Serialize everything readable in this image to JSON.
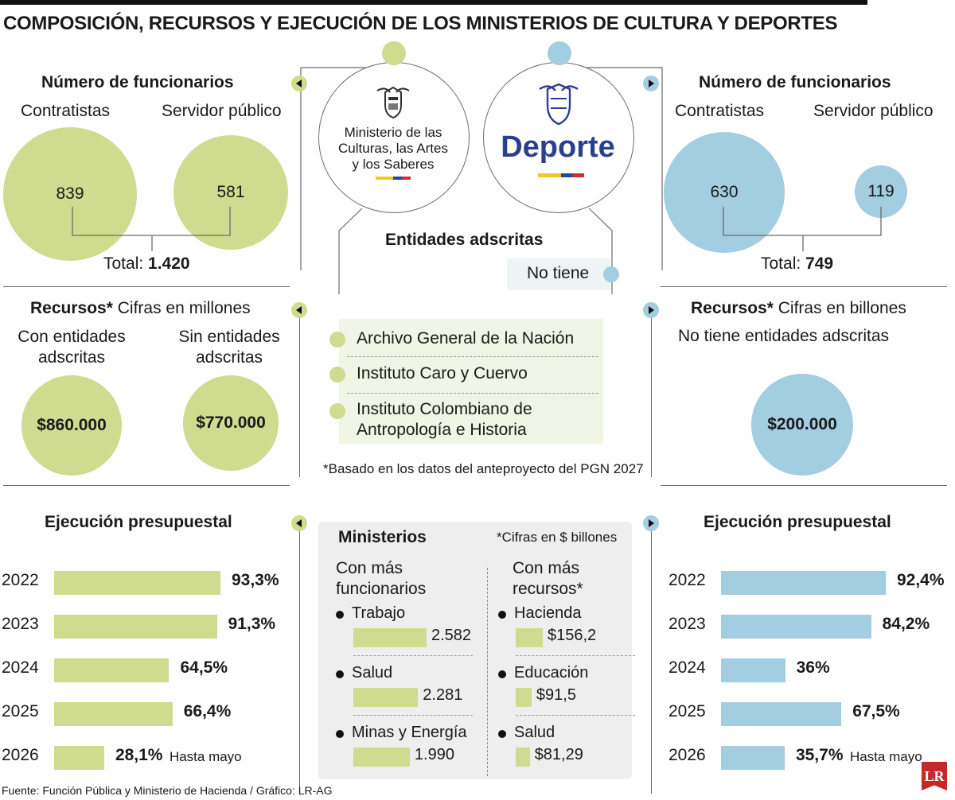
{
  "title": "COMPOSICIÓN, RECURSOS Y EJECUCIÓN DE LOS MINISTERIOS DE CULTURA Y DEPORTES",
  "colors": {
    "culture": "#cfdb8e",
    "sport": "#a3cde0",
    "center_panel": "#eeeeee"
  },
  "culture": {
    "logo_text": [
      "Ministerio de las",
      "Culturas, las Artes",
      "y los Saberes"
    ],
    "staff_title": "Número de funcionarios",
    "contractors_label": "Contratistas",
    "public_label": "Servidor público",
    "contractors": "839",
    "public": "581",
    "total_label": "Total:",
    "total": "1.420",
    "resources_title": "Recursos*",
    "resources_unit": "Cifras en millones",
    "with_label": [
      "Con entidades",
      "adscritas"
    ],
    "without_label": [
      "Sin entidades",
      "adscritas"
    ],
    "with_value": "$860.000",
    "without_value": "$770.000",
    "exec_title": "Ejecución presupuestal"
  },
  "sport": {
    "logo_text": "Deporte",
    "staff_title": "Número de funcionarios",
    "contractors_label": "Contratistas",
    "public_label": "Servidor público",
    "contractors": "630",
    "public": "119",
    "total_label": "Total:",
    "total": "749",
    "resources_title": "Recursos*",
    "resources_unit": "Cifras en billones",
    "no_entities": "No tiene entidades adscritas",
    "value": "$200.000",
    "exec_title": "Ejecución presupuestal"
  },
  "entities": {
    "title": "Entidades adscritas",
    "sport_none": "No tiene",
    "culture_list": [
      "Archivo General de la Nación",
      "Instituto Caro y Cuervo",
      "Instituto Colombiano de Antropología e Historia"
    ],
    "culture_list_lines": [
      [
        "Archivo General de la Nación"
      ],
      [
        "Instituto Caro y Cuervo"
      ],
      [
        "Instituto Colombiano de",
        "Antropología e Historia"
      ]
    ],
    "footnote": "*Basado en los datos del anteproyecto del PGN 2027"
  },
  "ministries": {
    "title": "Ministerios",
    "unit_note": "*Cifras en $ billones",
    "staff_heading": [
      "Con más",
      "funcionarios"
    ],
    "resources_heading": [
      "Con más",
      "recursos*"
    ]
  },
  "footer": {
    "source": "Fuente: Función Pública y Ministerio de Hacienda / Gráfico: LR-AG",
    "logo": "LR"
  },
  "chart_data": [
    {
      "type": "bar",
      "title": "Número de funcionarios",
      "categories": [
        "Contratistas",
        "Servidor público"
      ],
      "values": [
        839,
        581
      ],
      "total": 1420
    },
    {
      "type": "bar",
      "title": "Número de funcionarios",
      "categories": [
        "Contratistas",
        "Servidor público"
      ],
      "values": [
        630,
        119
      ],
      "total": 749
    },
    {
      "type": "bar",
      "title": "Recursos* Cifras en millones",
      "categories": [
        "Con entidades adscritas",
        "Sin entidades adscritas"
      ],
      "values": [
        860000,
        770000
      ]
    },
    {
      "type": "bar",
      "title": "Recursos* Cifras en billones",
      "categories": [
        "No tiene entidades adscritas"
      ],
      "values": [
        200000
      ]
    },
    {
      "type": "bar",
      "title": "Ejecución presupuestal",
      "categories": [
        "2022",
        "2023",
        "2024",
        "2025",
        "2026"
      ],
      "values": [
        93.3,
        91.3,
        64.5,
        66.4,
        28.1
      ],
      "labels": [
        "93,3%",
        "91,3%",
        "64,5%",
        "66,4%",
        "28,1%"
      ],
      "annotation": "Hasta mayo"
    },
    {
      "type": "bar",
      "title": "Ejecución presupuestal",
      "categories": [
        "2022",
        "2023",
        "2024",
        "2025",
        "2026"
      ],
      "values": [
        92.4,
        84.2,
        36,
        67.5,
        35.7
      ],
      "labels": [
        "92,4%",
        "84,2%",
        "36%",
        "67,5%",
        "35,7%"
      ],
      "annotation": "Hasta mayo"
    },
    {
      "type": "bar",
      "title": "Con más funcionarios",
      "categories": [
        "Trabajo",
        "Salud",
        "Minas y Energía"
      ],
      "values": [
        2582,
        2281,
        1990
      ],
      "labels": [
        "2.582",
        "2.281",
        "1.990"
      ]
    },
    {
      "type": "bar",
      "title": "Con más recursos*",
      "categories": [
        "Hacienda",
        "Educación",
        "Salud"
      ],
      "values": [
        156.2,
        91.5,
        81.29
      ],
      "labels": [
        "$156,2",
        "$91,5",
        "$81,29"
      ]
    }
  ]
}
